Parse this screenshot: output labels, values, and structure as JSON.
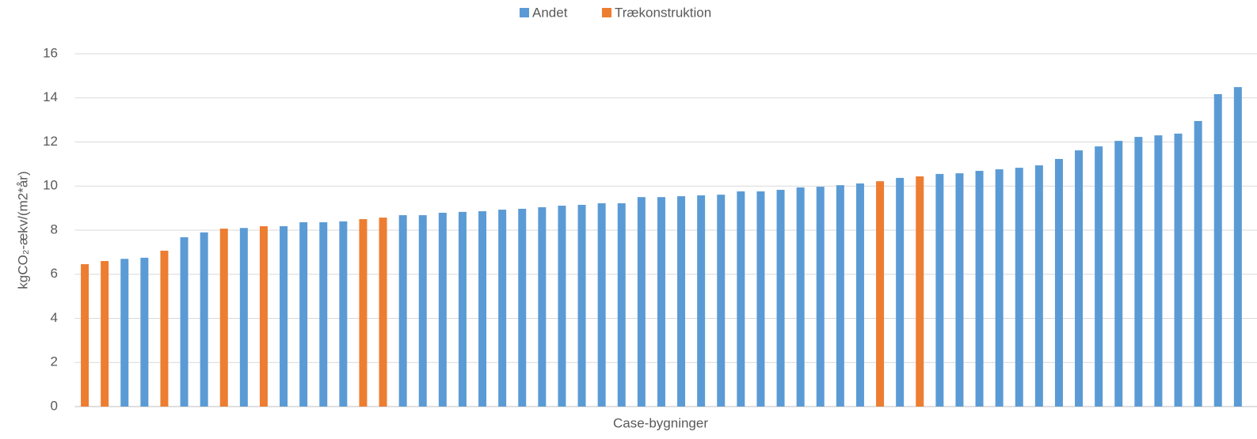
{
  "chart_data": {
    "type": "bar",
    "x_label": "Case-bygninger",
    "y_label": "kgCO₂-ækv/(m2*år)",
    "categories": [
      null,
      null,
      null,
      null,
      null,
      null,
      null,
      null,
      null,
      null,
      null,
      null,
      null,
      null,
      null,
      null,
      null,
      null,
      null,
      null,
      null,
      null,
      null,
      null,
      null,
      null,
      null,
      null,
      null,
      null,
      null,
      null,
      null,
      null,
      null,
      null,
      null,
      null,
      null,
      null,
      null,
      null,
      null,
      null,
      null,
      null,
      null,
      null,
      null,
      null,
      null,
      null,
      null,
      null,
      null,
      null,
      null,
      null,
      null
    ],
    "series": [
      {
        "name": "Andet",
        "color": "#5b9bd5",
        "values": [
          null,
          null,
          6.7,
          6.75,
          null,
          7.68,
          7.9,
          null,
          8.1,
          null,
          8.18,
          8.36,
          8.36,
          8.4,
          null,
          null,
          8.68,
          8.68,
          8.79,
          8.83,
          8.86,
          8.93,
          8.97,
          9.04,
          9.11,
          9.15,
          9.22,
          9.22,
          9.5,
          9.5,
          9.54,
          9.58,
          9.61,
          9.76,
          9.76,
          9.83,
          9.94,
          9.97,
          10.04,
          10.12,
          null,
          10.37,
          null,
          10.55,
          10.58,
          10.69,
          10.76,
          10.83,
          10.94,
          11.23,
          11.62,
          11.8,
          12.05,
          12.23,
          12.3,
          12.38,
          12.95,
          14.17,
          14.49
        ]
      },
      {
        "name": "Trækonstruktion",
        "color": "#ed7d31",
        "values": [
          6.46,
          6.6,
          null,
          null,
          7.07,
          null,
          null,
          8.07,
          null,
          8.18,
          null,
          null,
          null,
          null,
          8.5,
          8.57,
          null,
          null,
          null,
          null,
          null,
          null,
          null,
          null,
          null,
          null,
          null,
          null,
          null,
          null,
          null,
          null,
          null,
          null,
          null,
          null,
          null,
          null,
          null,
          null,
          10.22,
          null,
          10.44,
          null,
          null,
          null,
          null,
          null,
          null,
          null,
          null,
          null,
          null,
          null,
          null,
          null,
          null,
          null,
          null
        ]
      }
    ],
    "ylim": [
      0,
      16
    ],
    "yticks": [
      0,
      2,
      4,
      6,
      8,
      10,
      12,
      14,
      16
    ],
    "grid": true,
    "legend": "top"
  }
}
